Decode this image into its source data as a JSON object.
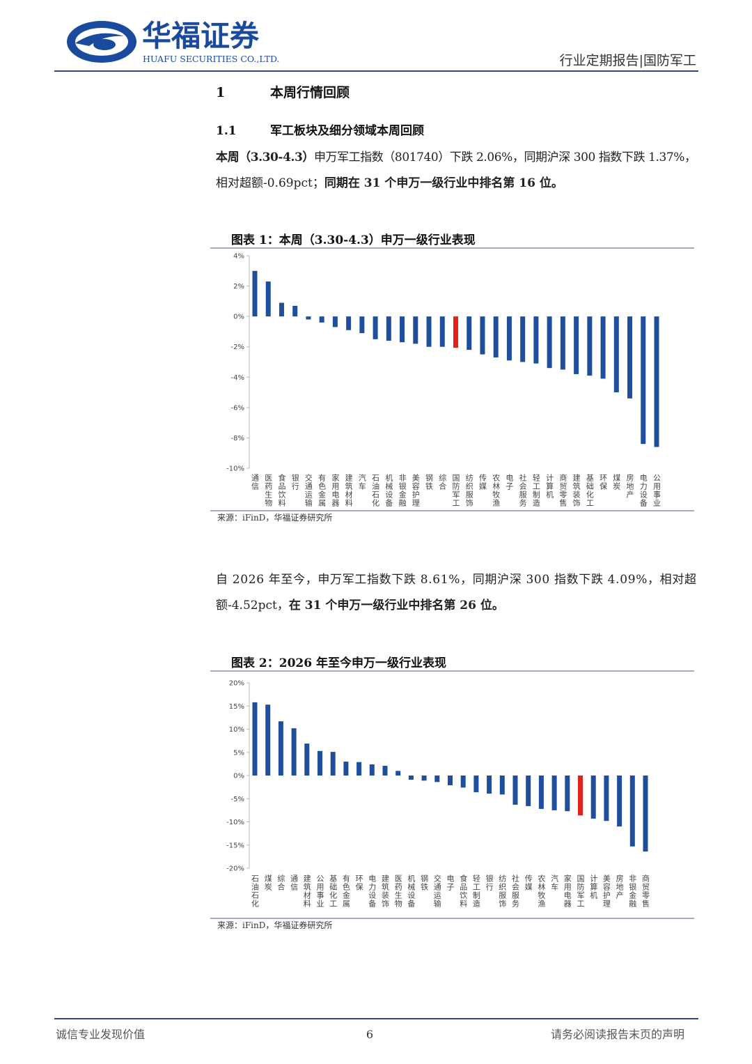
{
  "header": {
    "logo_cn": "华福证券",
    "logo_en": "HUAFU SECURITIES CO.,LTD.",
    "report_type": "行业定期报告|国防军工"
  },
  "section": {
    "number": "1",
    "title": "本周行情回顾"
  },
  "subsection": {
    "number": "1.1",
    "title": "军工板块及细分领域本周回顾"
  },
  "paragraphs": [
    [
      [
        {
          "text": "本周（3.30-4.3）",
          "bold": true
        },
        {
          "text": "申万军工指数（801740）下跌 2.06%，同期沪深 300 指数下跌 1.37%，",
          "bold": false
        }
      ],
      [
        {
          "text": "相对超额-0.69pct；",
          "bold": false
        },
        {
          "text": "同期在 31 个申万一级行业中排名第 16 位。",
          "bold": true
        }
      ]
    ],
    [
      [
        {
          "text": "自 2026 年至今，申万军工指数下跌 8.61%，同期沪深 300 指数下跌 4.09%，相对超",
          "bold": false
        }
      ],
      [
        {
          "text": "额-4.52pct，",
          "bold": false
        },
        {
          "text": "在 31 个申万一级行业中排名第 26 位。",
          "bold": true
        }
      ]
    ]
  ],
  "chart_data": [
    {
      "type": "bar",
      "title": "图表 1：本周（3.30-4.3）申万一级行业表现",
      "source": "来源：iFinD，华福证券研究所",
      "categories": [
        "通信",
        "医药生物",
        "食品饮料",
        "银行",
        "交通运输",
        "有色金属",
        "家用电器",
        "建筑材料",
        "汽车",
        "石油石化",
        "机械设备",
        "非银金融",
        "美容护理",
        "钢铁",
        "综合",
        "国防军工",
        "纺织服饰",
        "传媒",
        "农林牧渔",
        "电子",
        "社会服务",
        "轻工制造",
        "计算机",
        "商贸零售",
        "建筑装饰",
        "基础化工",
        "环保",
        "煤炭",
        "房地产",
        "电力设备",
        "公用事业"
      ],
      "values": [
        3.0,
        2.3,
        0.9,
        0.7,
        -0.2,
        -0.4,
        -0.7,
        -0.9,
        -1.1,
        -1.5,
        -1.6,
        -1.7,
        -1.8,
        -2.0,
        -2.0,
        -2.06,
        -2.2,
        -2.5,
        -2.7,
        -2.9,
        -3.0,
        -3.1,
        -3.4,
        -3.5,
        -3.8,
        -3.9,
        -4.1,
        -5.0,
        -5.4,
        -8.4,
        -8.6
      ],
      "color": "#1f4e9c",
      "highlight": {
        "index": 15,
        "color": "#e3201b"
      },
      "ylim": [
        -10,
        4
      ],
      "yticks": [
        {
          "value": -10,
          "label": "-10%"
        },
        {
          "value": -8,
          "label": "-8%"
        },
        {
          "value": -6,
          "label": "-6%"
        },
        {
          "value": -4,
          "label": "-4%"
        },
        {
          "value": -2,
          "label": "-2%"
        },
        {
          "value": 0,
          "label": "0%"
        },
        {
          "value": 2,
          "label": "2%"
        },
        {
          "value": 4,
          "label": "4%"
        }
      ],
      "grid": false
    },
    {
      "type": "bar",
      "title": "图表 2：2026 年至今申万一级行业表现",
      "source": "来源：iFinD，华福证券研究所",
      "categories": [
        "石油石化",
        "煤炭",
        "综合",
        "通信",
        "建筑材料",
        "公用事业",
        "基础化工",
        "有色金属",
        "环保",
        "电力设备",
        "建筑装饰",
        "医药生物",
        "机械设备",
        "钢铁",
        "交通运输",
        "电子",
        "食品饮料",
        "轻工制造",
        "银行",
        "纺织服饰",
        "社会服务",
        "传媒",
        "农林牧渔",
        "汽车",
        "家用电器",
        "国防军工",
        "计算机",
        "美容护理",
        "房地产",
        "非银金融",
        "商贸零售"
      ],
      "values": [
        15.8,
        15.3,
        11.7,
        10.2,
        6.9,
        5.3,
        5.1,
        3.0,
        2.9,
        2.4,
        2.1,
        1.0,
        -0.9,
        -1.1,
        -1.4,
        -2.1,
        -2.6,
        -3.6,
        -3.9,
        -4.1,
        -6.3,
        -6.6,
        -7.2,
        -7.5,
        -7.7,
        -8.61,
        -9.3,
        -9.8,
        -11.0,
        -15.3,
        -16.4
      ],
      "color": "#1f4e9c",
      "highlight": {
        "index": 25,
        "color": "#e3201b"
      },
      "ylim": [
        -20,
        20
      ],
      "yticks": [
        {
          "value": -20,
          "label": "-20%"
        },
        {
          "value": -15,
          "label": "-15%"
        },
        {
          "value": -10,
          "label": "-10%"
        },
        {
          "value": -5,
          "label": "-5%"
        },
        {
          "value": 0,
          "label": "0%"
        },
        {
          "value": 5,
          "label": "5%"
        },
        {
          "value": 10,
          "label": "10%"
        },
        {
          "value": 15,
          "label": "15%"
        },
        {
          "value": 20,
          "label": "20%"
        }
      ],
      "grid": false
    }
  ],
  "footer": {
    "left": "诚信专业发现价值",
    "page": "6",
    "right": "请务必阅读报告末页的声明"
  }
}
